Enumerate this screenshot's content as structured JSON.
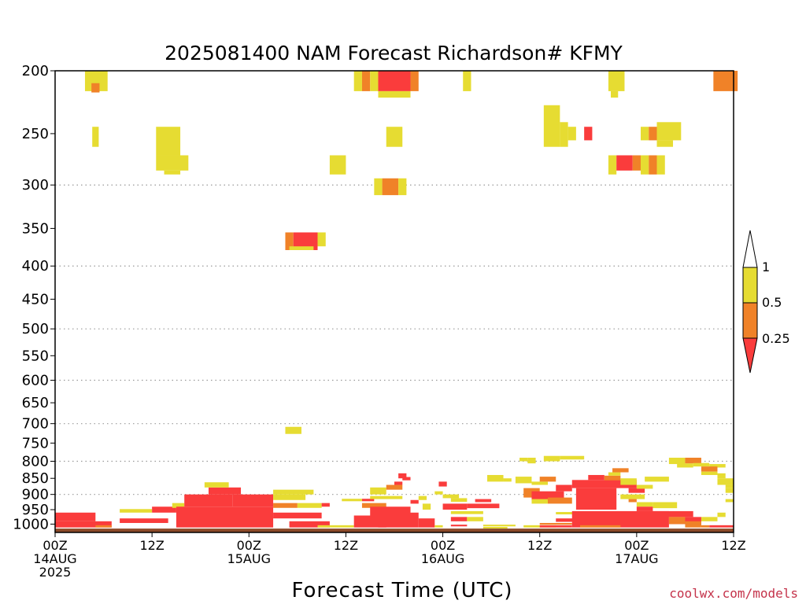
{
  "chart_data": {
    "type": "heatmap",
    "title": "2025081400 NAM Forecast Richardson# KFMY",
    "xlabel": "Forecast Time (UTC)",
    "ylabel": "",
    "x_unit": "forecast hour",
    "xlim": [
      0,
      84
    ],
    "y_scale": "log",
    "ylim": [
      1030,
      200
    ],
    "y_ticks": [
      200,
      250,
      300,
      350,
      400,
      450,
      500,
      550,
      600,
      650,
      700,
      750,
      800,
      850,
      900,
      950,
      1000
    ],
    "y_gridlines": [
      300,
      400,
      500,
      600,
      700,
      800,
      900
    ],
    "x_ticks": [
      {
        "hour": 0,
        "labels": [
          "00Z",
          "14AUG",
          "2025"
        ]
      },
      {
        "hour": 12,
        "labels": [
          "12Z"
        ]
      },
      {
        "hour": 24,
        "labels": [
          "00Z",
          "15AUG"
        ]
      },
      {
        "hour": 36,
        "labels": [
          "12Z"
        ]
      },
      {
        "hour": 48,
        "labels": [
          "00Z",
          "16AUG"
        ]
      },
      {
        "hour": 60,
        "labels": [
          "12Z"
        ]
      },
      {
        "hour": 72,
        "labels": [
          "00Z",
          "17AUG"
        ]
      },
      {
        "hour": 84,
        "labels": [
          "12Z"
        ]
      }
    ],
    "colorbar": {
      "labels": [
        "1",
        "0.5",
        "0.25"
      ],
      "bins": [
        {
          "range": "> 1",
          "color": "#ffffff"
        },
        {
          "range": "0.5 - 1",
          "color": "#e6dc32"
        },
        {
          "range": "0.25 - 0.5",
          "color": "#f08228"
        },
        {
          "range": "< 0.25",
          "color": "#fa3c3c"
        }
      ]
    },
    "ground_color": "#8c4a28",
    "cells": [
      [
        3.7,
        6.5,
        200,
        215,
        "#e6dc32"
      ],
      [
        4.5,
        5.5,
        209,
        216,
        "#f08228"
      ],
      [
        4.6,
        5.4,
        244,
        262,
        "#e6dc32"
      ],
      [
        12.5,
        15.5,
        244,
        270,
        "#e6dc32"
      ],
      [
        12.5,
        16.5,
        270,
        285,
        "#e6dc32"
      ],
      [
        13.5,
        15.5,
        285,
        289,
        "#e6dc32"
      ],
      [
        34.0,
        36.0,
        270,
        289,
        "#e6dc32"
      ],
      [
        37.0,
        38.0,
        200,
        215,
        "#e6dc32"
      ],
      [
        38.0,
        39.0,
        200,
        215,
        "#f08228"
      ],
      [
        39.0,
        40.0,
        200,
        215,
        "#e6dc32"
      ],
      [
        40.0,
        44.0,
        200,
        215,
        "#fa3c3c"
      ],
      [
        44.0,
        45.0,
        200,
        215,
        "#f08228"
      ],
      [
        40.0,
        44.0,
        215,
        220,
        "#e6dc32"
      ],
      [
        41.0,
        43.0,
        244,
        262,
        "#e6dc32"
      ],
      [
        39.5,
        40.5,
        293,
        311,
        "#e6dc32"
      ],
      [
        40.5,
        42.5,
        293,
        311,
        "#f08228"
      ],
      [
        42.5,
        43.5,
        293,
        311,
        "#e6dc32"
      ],
      [
        50.5,
        51.5,
        200,
        215,
        "#e6dc32"
      ],
      [
        60.5,
        62.5,
        226,
        262,
        "#e6dc32"
      ],
      [
        62.5,
        63.5,
        240,
        262,
        "#e6dc32"
      ],
      [
        63.5,
        64.5,
        244,
        256,
        "#e6dc32"
      ],
      [
        65.5,
        66.5,
        244,
        256,
        "#fa3c3c"
      ],
      [
        68.5,
        70.5,
        200,
        215,
        "#e6dc32"
      ],
      [
        68.8,
        69.7,
        215,
        220,
        "#e6dc32"
      ],
      [
        68.5,
        69.5,
        270,
        289,
        "#e6dc32"
      ],
      [
        69.5,
        71.5,
        270,
        285,
        "#fa3c3c"
      ],
      [
        71.5,
        72.5,
        270,
        285,
        "#f08228"
      ],
      [
        72.5,
        73.5,
        270,
        289,
        "#e6dc32"
      ],
      [
        73.5,
        74.5,
        270,
        289,
        "#f08228"
      ],
      [
        74.5,
        75.5,
        270,
        289,
        "#e6dc32"
      ],
      [
        72.5,
        73.5,
        244,
        256,
        "#e6dc32"
      ],
      [
        73.5,
        74.5,
        244,
        256,
        "#f08228"
      ],
      [
        74.5,
        77.5,
        240,
        256,
        "#e6dc32"
      ],
      [
        74.5,
        76.5,
        256,
        262,
        "#e6dc32"
      ],
      [
        81.5,
        84.5,
        200,
        215,
        "#f08228"
      ],
      [
        28.5,
        29.5,
        355,
        378,
        "#f08228"
      ],
      [
        29.5,
        32.5,
        355,
        378,
        "#fa3c3c"
      ],
      [
        32.5,
        33.5,
        355,
        373,
        "#e6dc32"
      ],
      [
        29.0,
        32.0,
        373,
        378,
        "#e6dc32"
      ],
      [
        28.5,
        30.5,
        708,
        726,
        "#e6dc32"
      ],
      [
        0.0,
        5.0,
        960,
        990,
        "#fa3c3c"
      ],
      [
        0.0,
        7.0,
        990,
        1012,
        "#fa3c3c"
      ],
      [
        5.0,
        7.0,
        1004,
        1012,
        "#f08228"
      ],
      [
        8.0,
        12.0,
        948,
        960,
        "#e6dc32"
      ],
      [
        8.0,
        14.0,
        980,
        996,
        "#fa3c3c"
      ],
      [
        12.0,
        15.0,
        940,
        960,
        "#fa3c3c"
      ],
      [
        14.5,
        16.0,
        928,
        944,
        "#e6dc32"
      ],
      [
        15.0,
        27.0,
        940,
        1012,
        "#fa3c3c"
      ],
      [
        16.0,
        22.0,
        900,
        940,
        "#fa3c3c"
      ],
      [
        19.0,
        23.0,
        878,
        900,
        "#fa3c3c"
      ],
      [
        18.5,
        21.5,
        862,
        878,
        "#e6dc32"
      ],
      [
        22.0,
        27.0,
        900,
        940,
        "#fa3c3c"
      ],
      [
        27.0,
        31.0,
        900,
        918,
        "#e6dc32"
      ],
      [
        27.0,
        32.0,
        885,
        900,
        "#e6dc32"
      ],
      [
        27.0,
        30.0,
        928,
        944,
        "#f08228"
      ],
      [
        30.0,
        33.0,
        928,
        944,
        "#e6dc32"
      ],
      [
        33.0,
        34.0,
        928,
        940,
        "#fa3c3c"
      ],
      [
        27.0,
        33.0,
        960,
        980,
        "#fa3c3c"
      ],
      [
        29.0,
        34.0,
        990,
        1012,
        "#fa3c3c"
      ],
      [
        32.5,
        37.0,
        1004,
        1012,
        "#e6dc32"
      ],
      [
        35.5,
        38.0,
        914,
        922,
        "#e6dc32"
      ],
      [
        38.0,
        39.5,
        914,
        922,
        "#fa3c3c"
      ],
      [
        38.0,
        41.0,
        928,
        944,
        "#f08228"
      ],
      [
        39.0,
        44.0,
        940,
        970,
        "#fa3c3c"
      ],
      [
        37.0,
        41.0,
        970,
        1012,
        "#fa3c3c"
      ],
      [
        40.0,
        45.0,
        960,
        1012,
        "#fa3c3c"
      ],
      [
        45.0,
        47.0,
        980,
        1012,
        "#fa3c3c"
      ],
      [
        47.0,
        48.0,
        1004,
        1012,
        "#e6dc32"
      ],
      [
        39.0,
        41.0,
        878,
        900,
        "#e6dc32"
      ],
      [
        41.0,
        43.0,
        870,
        885,
        "#f08228"
      ],
      [
        42.0,
        43.0,
        860,
        870,
        "#fa3c3c"
      ],
      [
        42.5,
        43.5,
        835,
        850,
        "#fa3c3c"
      ],
      [
        43.0,
        44.0,
        846,
        856,
        "#fa3c3c"
      ],
      [
        39.0,
        43.0,
        905,
        915,
        "#e6dc32"
      ],
      [
        44.0,
        45.0,
        918,
        930,
        "#fa3c3c"
      ],
      [
        45.0,
        46.0,
        905,
        918,
        "#e6dc32"
      ],
      [
        47.0,
        48.0,
        890,
        900,
        "#e6dc32"
      ],
      [
        47.5,
        48.5,
        860,
        875,
        "#fa3c3c"
      ],
      [
        48.0,
        50.0,
        900,
        912,
        "#e6dc32"
      ],
      [
        49.0,
        51.0,
        912,
        924,
        "#e6dc32"
      ],
      [
        45.5,
        46.5,
        930,
        950,
        "#e6dc32"
      ],
      [
        48.0,
        51.0,
        930,
        950,
        "#fa3c3c"
      ],
      [
        49.0,
        53.0,
        955,
        965,
        "#e6dc32"
      ],
      [
        49.0,
        51.0,
        975,
        990,
        "#fa3c3c"
      ],
      [
        51.0,
        53.0,
        975,
        990,
        "#e6dc32"
      ],
      [
        49.0,
        51.0,
        1002,
        1008,
        "#fa3c3c"
      ],
      [
        51.0,
        55.0,
        930,
        945,
        "#fa3c3c"
      ],
      [
        52.0,
        54.0,
        915,
        925,
        "#fa3c3c"
      ],
      [
        53.0,
        57.0,
        1002,
        1008,
        "#e6dc32"
      ],
      [
        53.0,
        56.0,
        1010,
        1016,
        "#e6dc32"
      ],
      [
        53.5,
        55.5,
        840,
        860,
        "#e6dc32"
      ],
      [
        55.5,
        56.5,
        850,
        860,
        "#e6dc32"
      ],
      [
        57.5,
        58.5,
        790,
        800,
        "#e6dc32"
      ],
      [
        58.5,
        59.5,
        790,
        806,
        "#e6dc32"
      ],
      [
        60.5,
        62.5,
        785,
        800,
        "#e6dc32"
      ],
      [
        62.5,
        65.5,
        785,
        795,
        "#e6dc32"
      ],
      [
        57.0,
        59.0,
        845,
        865,
        "#e6dc32"
      ],
      [
        59.0,
        61.0,
        860,
        870,
        "#e6dc32"
      ],
      [
        60.0,
        62.0,
        845,
        860,
        "#f08228"
      ],
      [
        58.0,
        60.0,
        880,
        910,
        "#f08228"
      ],
      [
        59.0,
        63.0,
        890,
        920,
        "#fa3c3c"
      ],
      [
        62.0,
        64.0,
        870,
        890,
        "#fa3c3c"
      ],
      [
        59.0,
        61.0,
        915,
        930,
        "#e6dc32"
      ],
      [
        61.0,
        64.0,
        910,
        930,
        "#f08228"
      ],
      [
        64.0,
        72.0,
        855,
        880,
        "#fa3c3c"
      ],
      [
        64.5,
        69.5,
        880,
        950,
        "#fa3c3c"
      ],
      [
        66.0,
        68.0,
        840,
        855,
        "#fa3c3c"
      ],
      [
        68.0,
        70.0,
        842,
        856,
        "#f08228"
      ],
      [
        68.5,
        70.0,
        832,
        842,
        "#e6dc32"
      ],
      [
        69.0,
        71.0,
        820,
        832,
        "#f08228"
      ],
      [
        70.0,
        72.0,
        850,
        870,
        "#e6dc32"
      ],
      [
        71.0,
        73.0,
        880,
        895,
        "#fa3c3c"
      ],
      [
        70.0,
        73.0,
        900,
        915,
        "#e6dc32"
      ],
      [
        71.0,
        72.0,
        915,
        925,
        "#f08228"
      ],
      [
        72.0,
        74.0,
        870,
        882,
        "#e6dc32"
      ],
      [
        73.0,
        76.0,
        845,
        860,
        "#e6dc32"
      ],
      [
        62.0,
        66.0,
        958,
        966,
        "#e6dc32"
      ],
      [
        62.0,
        65.0,
        980,
        992,
        "#fa3c3c"
      ],
      [
        60.0,
        64.0,
        996,
        1002,
        "#f08228"
      ],
      [
        58.0,
        62.0,
        1004,
        1012,
        "#e6dc32"
      ],
      [
        60.0,
        64.0,
        1004,
        1012,
        "#fa3c3c"
      ],
      [
        64.0,
        76.0,
        955,
        1012,
        "#fa3c3c"
      ],
      [
        65.0,
        70.0,
        1004,
        1012,
        "#f08228"
      ],
      [
        72.0,
        74.0,
        925,
        940,
        "#e6dc32"
      ],
      [
        74.0,
        77.0,
        925,
        945,
        "#e6dc32"
      ],
      [
        72.0,
        74.0,
        940,
        955,
        "#fa3c3c"
      ],
      [
        74.0,
        79.0,
        955,
        975,
        "#fa3c3c"
      ],
      [
        76.0,
        80.0,
        975,
        1000,
        "#fa3c3c"
      ],
      [
        76.0,
        78.0,
        975,
        1000,
        "#f08228"
      ],
      [
        78.0,
        80.0,
        990,
        1012,
        "#f08228"
      ],
      [
        80.0,
        81.0,
        1004,
        1012,
        "#f08228"
      ],
      [
        81.0,
        84.0,
        1004,
        1012,
        "#fa3c3c"
      ],
      [
        76.0,
        78.0,
        790,
        808,
        "#e6dc32"
      ],
      [
        77.0,
        79.0,
        806,
        818,
        "#e6dc32"
      ],
      [
        78.0,
        80.0,
        790,
        806,
        "#f08228"
      ],
      [
        79.0,
        81.0,
        805,
        815,
        "#e6dc32"
      ],
      [
        81.0,
        83.0,
        808,
        818,
        "#e6dc32"
      ],
      [
        80.0,
        82.0,
        815,
        830,
        "#f08228"
      ],
      [
        80.0,
        82.0,
        830,
        840,
        "#e6dc32"
      ],
      [
        82.0,
        83.0,
        835,
        850,
        "#e6dc32"
      ],
      [
        82.0,
        84.0,
        850,
        870,
        "#e6dc32"
      ],
      [
        83.0,
        84.0,
        870,
        880,
        "#e6dc32"
      ],
      [
        83.0,
        84.0,
        880,
        895,
        "#e6dc32"
      ],
      [
        83.0,
        84.0,
        915,
        925,
        "#e6dc32"
      ],
      [
        82.0,
        83.0,
        960,
        975,
        "#e6dc32"
      ],
      [
        80.0,
        82.0,
        975,
        990,
        "#e6dc32"
      ]
    ]
  },
  "credit": "coolwx.com/models"
}
